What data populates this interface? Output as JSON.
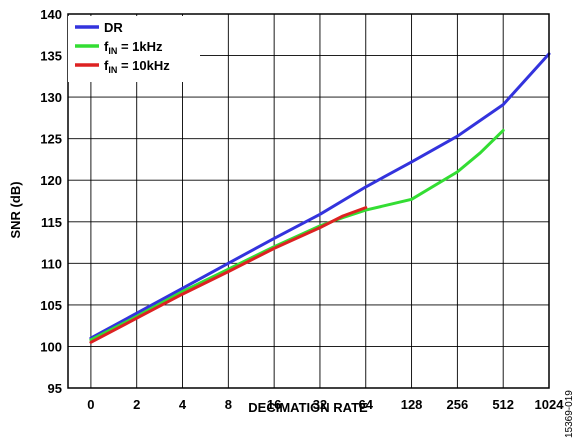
{
  "chart_data": {
    "type": "line",
    "title": "",
    "xlabel": "DECIMATION RATE",
    "ylabel": "SNR (dB)",
    "categories": [
      "0",
      "2",
      "4",
      "8",
      "16",
      "32",
      "64",
      "128",
      "256",
      "512",
      "1024"
    ],
    "ylim": [
      95,
      140
    ],
    "yticks": [
      "95",
      "100",
      "105",
      "110",
      "115",
      "120",
      "125",
      "130",
      "135",
      "140"
    ],
    "grid": true,
    "legend_position": "top-left",
    "series": [
      {
        "name": "DR",
        "color": "#3333dd",
        "x": [
          0,
          1,
          2,
          3,
          4,
          5,
          6,
          7,
          8,
          9,
          10
        ],
        "y": [
          101.0,
          104.0,
          107.0,
          110.0,
          113.0,
          115.9,
          119.2,
          122.2,
          125.3,
          129.1,
          135.2
        ]
      },
      {
        "name_parts": {
          "base": "f",
          "sub": "IN",
          "rest": " = 1kHz"
        },
        "color": "#33dd33",
        "x": [
          0,
          1,
          2,
          3,
          4,
          5,
          5.5,
          6,
          7,
          8,
          8.5,
          9
        ],
        "y": [
          100.8,
          103.6,
          106.6,
          109.3,
          112.0,
          114.5,
          115.5,
          116.4,
          117.7,
          121.0,
          123.3,
          126.0
        ]
      },
      {
        "name_parts": {
          "base": "f",
          "sub": "IN",
          "rest": " = 10kHz"
        },
        "color": "#dd2222",
        "x": [
          0,
          1,
          2,
          3,
          4,
          5,
          5.5,
          6
        ],
        "y": [
          100.5,
          103.4,
          106.3,
          109.0,
          111.8,
          114.3,
          115.7,
          116.7
        ]
      }
    ]
  },
  "figure_id": "15369-019"
}
